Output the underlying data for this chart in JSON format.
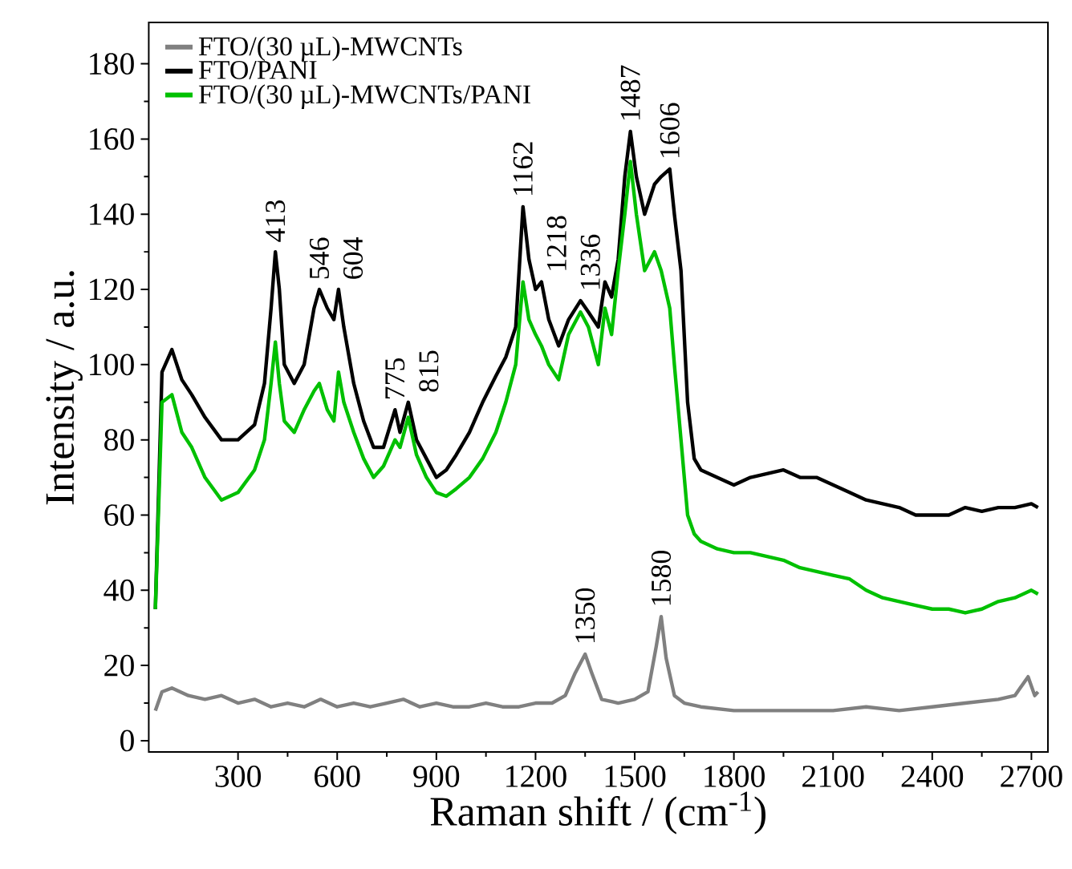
{
  "chart_data": {
    "type": "line",
    "xlabel": "Raman shift / (cm$^{-1}$)",
    "ylabel": "Intensity / a.u.",
    "xlim": [
      30,
      2750
    ],
    "ylim": [
      -3,
      191
    ],
    "xticks": [
      300,
      600,
      900,
      1200,
      1500,
      1800,
      2100,
      2400,
      2700
    ],
    "yticks": [
      0,
      20,
      40,
      60,
      80,
      100,
      120,
      140,
      160,
      180
    ],
    "grid": false,
    "legend": "top left",
    "line_style": "solid",
    "marker": "none",
    "series": [
      {
        "name": "FTO/(30 µL)-MWCNTs",
        "color": "#808080",
        "x": [
          50,
          70,
          100,
          150,
          200,
          250,
          300,
          350,
          400,
          450,
          500,
          550,
          600,
          650,
          700,
          750,
          800,
          850,
          900,
          950,
          1000,
          1050,
          1100,
          1150,
          1200,
          1250,
          1290,
          1320,
          1350,
          1370,
          1400,
          1450,
          1500,
          1540,
          1565,
          1580,
          1595,
          1620,
          1650,
          1700,
          1800,
          1900,
          2000,
          2100,
          2200,
          2300,
          2400,
          2500,
          2600,
          2650,
          2690,
          2710,
          2720
        ],
        "values": [
          8,
          13,
          14,
          12,
          11,
          12,
          10,
          11,
          9,
          10,
          9,
          11,
          9,
          10,
          9,
          10,
          11,
          9,
          10,
          9,
          9,
          10,
          9,
          9,
          10,
          10,
          12,
          18,
          23,
          18,
          11,
          10,
          11,
          13,
          25,
          33,
          22,
          12,
          10,
          9,
          8,
          8,
          8,
          8,
          9,
          8,
          9,
          10,
          11,
          12,
          17,
          12,
          13
        ]
      },
      {
        "name": "FTO/PANI",
        "color": "#000000",
        "x": [
          50,
          70,
          100,
          130,
          160,
          200,
          250,
          300,
          350,
          380,
          400,
          413,
          425,
          440,
          470,
          500,
          530,
          546,
          570,
          590,
          604,
          620,
          650,
          680,
          710,
          740,
          775,
          790,
          815,
          840,
          870,
          900,
          930,
          960,
          1000,
          1040,
          1080,
          1110,
          1140,
          1162,
          1180,
          1200,
          1218,
          1240,
          1270,
          1300,
          1336,
          1360,
          1390,
          1410,
          1430,
          1450,
          1470,
          1487,
          1505,
          1530,
          1560,
          1580,
          1606,
          1620,
          1640,
          1660,
          1680,
          1700,
          1750,
          1800,
          1850,
          1900,
          1950,
          2000,
          2050,
          2100,
          2150,
          2200,
          2250,
          2300,
          2350,
          2400,
          2450,
          2500,
          2550,
          2600,
          2650,
          2700,
          2720
        ],
        "values": [
          35,
          98,
          104,
          96,
          92,
          86,
          80,
          80,
          84,
          95,
          115,
          130,
          120,
          100,
          95,
          100,
          115,
          120,
          115,
          112,
          120,
          110,
          95,
          85,
          78,
          78,
          88,
          82,
          90,
          80,
          75,
          70,
          72,
          76,
          82,
          90,
          97,
          102,
          110,
          142,
          128,
          120,
          122,
          112,
          105,
          112,
          117,
          114,
          110,
          122,
          118,
          128,
          150,
          162,
          150,
          140,
          148,
          150,
          152,
          140,
          125,
          90,
          75,
          72,
          70,
          68,
          70,
          71,
          72,
          70,
          70,
          68,
          66,
          64,
          63,
          62,
          60,
          60,
          60,
          62,
          61,
          62,
          62,
          63,
          62
        ]
      },
      {
        "name": "FTO/(30 µL)-MWCNTs/PANI",
        "color": "#00c000",
        "x": [
          50,
          70,
          100,
          130,
          160,
          200,
          250,
          300,
          350,
          380,
          400,
          413,
          425,
          440,
          470,
          500,
          530,
          546,
          570,
          590,
          604,
          620,
          650,
          680,
          710,
          740,
          775,
          790,
          815,
          840,
          870,
          900,
          930,
          960,
          1000,
          1040,
          1080,
          1110,
          1140,
          1162,
          1180,
          1200,
          1218,
          1240,
          1270,
          1300,
          1336,
          1360,
          1390,
          1410,
          1430,
          1450,
          1470,
          1487,
          1505,
          1530,
          1560,
          1580,
          1606,
          1620,
          1640,
          1660,
          1680,
          1700,
          1750,
          1800,
          1850,
          1900,
          1950,
          2000,
          2050,
          2100,
          2150,
          2200,
          2250,
          2300,
          2350,
          2400,
          2450,
          2500,
          2550,
          2600,
          2650,
          2700,
          2720
        ],
        "values": [
          35,
          90,
          92,
          82,
          78,
          70,
          64,
          66,
          72,
          80,
          95,
          106,
          95,
          85,
          82,
          88,
          93,
          95,
          88,
          85,
          98,
          90,
          82,
          75,
          70,
          73,
          80,
          78,
          86,
          76,
          70,
          66,
          65,
          67,
          70,
          75,
          82,
          90,
          100,
          122,
          112,
          108,
          105,
          100,
          96,
          108,
          114,
          110,
          100,
          115,
          108,
          125,
          140,
          154,
          140,
          125,
          130,
          125,
          115,
          100,
          80,
          60,
          55,
          53,
          51,
          50,
          50,
          49,
          48,
          46,
          45,
          44,
          43,
          40,
          38,
          37,
          36,
          35,
          35,
          34,
          35,
          37,
          38,
          40,
          39
        ]
      }
    ],
    "annotations": [
      {
        "text": "413",
        "x": 413,
        "y": 132
      },
      {
        "text": "546",
        "x": 546,
        "y": 122
      },
      {
        "text": "604",
        "x": 604,
        "y": 122
      },
      {
        "text": "775",
        "x": 775,
        "y": 90
      },
      {
        "text": "815",
        "x": 815,
        "y": 92
      },
      {
        "text": "1162",
        "x": 1162,
        "y": 144
      },
      {
        "text": "1218",
        "x": 1218,
        "y": 124
      },
      {
        "text": "1336",
        "x": 1336,
        "y": 119
      },
      {
        "text": "1487",
        "x": 1487,
        "y": 164
      },
      {
        "text": "1606",
        "x": 1606,
        "y": 154
      },
      {
        "text": "1350",
        "x": 1350,
        "y": 25
      },
      {
        "text": "1580",
        "x": 1580,
        "y": 35
      }
    ]
  }
}
